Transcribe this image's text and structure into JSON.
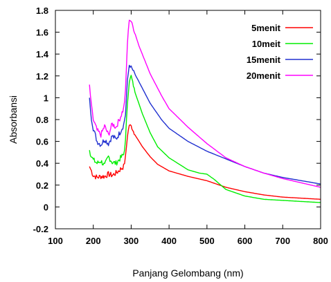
{
  "chart_data": {
    "type": "line",
    "xlabel": "Panjang Gelombang (nm)",
    "ylabel": "Absorbansi",
    "xlim": [
      100,
      800
    ],
    "ylim": [
      -0.2,
      1.8
    ],
    "xticks": [
      "100",
      "200",
      "300",
      "400",
      "500",
      "600",
      "700",
      "800"
    ],
    "yticks": [
      "-0.2",
      "0",
      "0.2",
      "0.4",
      "0.6",
      "0.8",
      "1",
      "1.2",
      "1.4",
      "1.6",
      "1.8"
    ],
    "grid": false,
    "legend_position": "top-right",
    "series": [
      {
        "name": "5menit",
        "color": "#ff0000",
        "points": [
          [
            190,
            0.37
          ],
          [
            195,
            0.33
          ],
          [
            200,
            0.29
          ],
          [
            210,
            0.27
          ],
          [
            220,
            0.28
          ],
          [
            230,
            0.28
          ],
          [
            240,
            0.3
          ],
          [
            250,
            0.29
          ],
          [
            260,
            0.31
          ],
          [
            270,
            0.34
          ],
          [
            280,
            0.37
          ],
          [
            285,
            0.45
          ],
          [
            290,
            0.65
          ],
          [
            295,
            0.75
          ],
          [
            300,
            0.74
          ],
          [
            310,
            0.66
          ],
          [
            330,
            0.55
          ],
          [
            350,
            0.46
          ],
          [
            370,
            0.39
          ],
          [
            400,
            0.33
          ],
          [
            450,
            0.28
          ],
          [
            500,
            0.24
          ],
          [
            550,
            0.18
          ],
          [
            600,
            0.14
          ],
          [
            650,
            0.11
          ],
          [
            700,
            0.09
          ],
          [
            750,
            0.08
          ],
          [
            800,
            0.07
          ]
        ]
      },
      {
        "name": "10meit",
        "color": "#00ee00",
        "points": [
          [
            190,
            0.52
          ],
          [
            195,
            0.46
          ],
          [
            200,
            0.43
          ],
          [
            210,
            0.4
          ],
          [
            220,
            0.42
          ],
          [
            230,
            0.38
          ],
          [
            240,
            0.46
          ],
          [
            250,
            0.41
          ],
          [
            260,
            0.4
          ],
          [
            270,
            0.44
          ],
          [
            280,
            0.48
          ],
          [
            285,
            0.6
          ],
          [
            290,
            0.95
          ],
          [
            295,
            1.15
          ],
          [
            300,
            1.2
          ],
          [
            310,
            1.05
          ],
          [
            330,
            0.85
          ],
          [
            350,
            0.68
          ],
          [
            370,
            0.55
          ],
          [
            400,
            0.45
          ],
          [
            450,
            0.34
          ],
          [
            480,
            0.31
          ],
          [
            500,
            0.3
          ],
          [
            520,
            0.25
          ],
          [
            550,
            0.16
          ],
          [
            600,
            0.1
          ],
          [
            650,
            0.07
          ],
          [
            700,
            0.06
          ],
          [
            750,
            0.05
          ],
          [
            800,
            0.04
          ]
        ]
      },
      {
        "name": "15menit",
        "color": "#2030d0",
        "points": [
          [
            190,
            1.0
          ],
          [
            195,
            0.82
          ],
          [
            200,
            0.72
          ],
          [
            210,
            0.6
          ],
          [
            220,
            0.57
          ],
          [
            230,
            0.62
          ],
          [
            240,
            0.58
          ],
          [
            250,
            0.65
          ],
          [
            260,
            0.62
          ],
          [
            270,
            0.68
          ],
          [
            280,
            0.75
          ],
          [
            285,
            0.85
          ],
          [
            290,
            1.15
          ],
          [
            295,
            1.3
          ],
          [
            300,
            1.28
          ],
          [
            320,
            1.15
          ],
          [
            350,
            0.95
          ],
          [
            380,
            0.8
          ],
          [
            400,
            0.72
          ],
          [
            450,
            0.6
          ],
          [
            500,
            0.51
          ],
          [
            550,
            0.44
          ],
          [
            600,
            0.37
          ],
          [
            650,
            0.31
          ],
          [
            700,
            0.27
          ],
          [
            750,
            0.24
          ],
          [
            800,
            0.21
          ]
        ]
      },
      {
        "name": "20menit",
        "color": "#ff00ff",
        "points": [
          [
            190,
            1.12
          ],
          [
            195,
            0.92
          ],
          [
            200,
            0.8
          ],
          [
            210,
            0.7
          ],
          [
            220,
            0.66
          ],
          [
            230,
            0.74
          ],
          [
            240,
            0.66
          ],
          [
            250,
            0.76
          ],
          [
            260,
            0.73
          ],
          [
            270,
            0.81
          ],
          [
            280,
            0.9
          ],
          [
            285,
            1.05
          ],
          [
            290,
            1.5
          ],
          [
            295,
            1.72
          ],
          [
            300,
            1.7
          ],
          [
            320,
            1.48
          ],
          [
            350,
            1.22
          ],
          [
            380,
            1.02
          ],
          [
            400,
            0.9
          ],
          [
            450,
            0.73
          ],
          [
            500,
            0.58
          ],
          [
            550,
            0.45
          ],
          [
            600,
            0.37
          ],
          [
            650,
            0.31
          ],
          [
            700,
            0.26
          ],
          [
            750,
            0.22
          ],
          [
            800,
            0.18
          ]
        ]
      }
    ]
  }
}
